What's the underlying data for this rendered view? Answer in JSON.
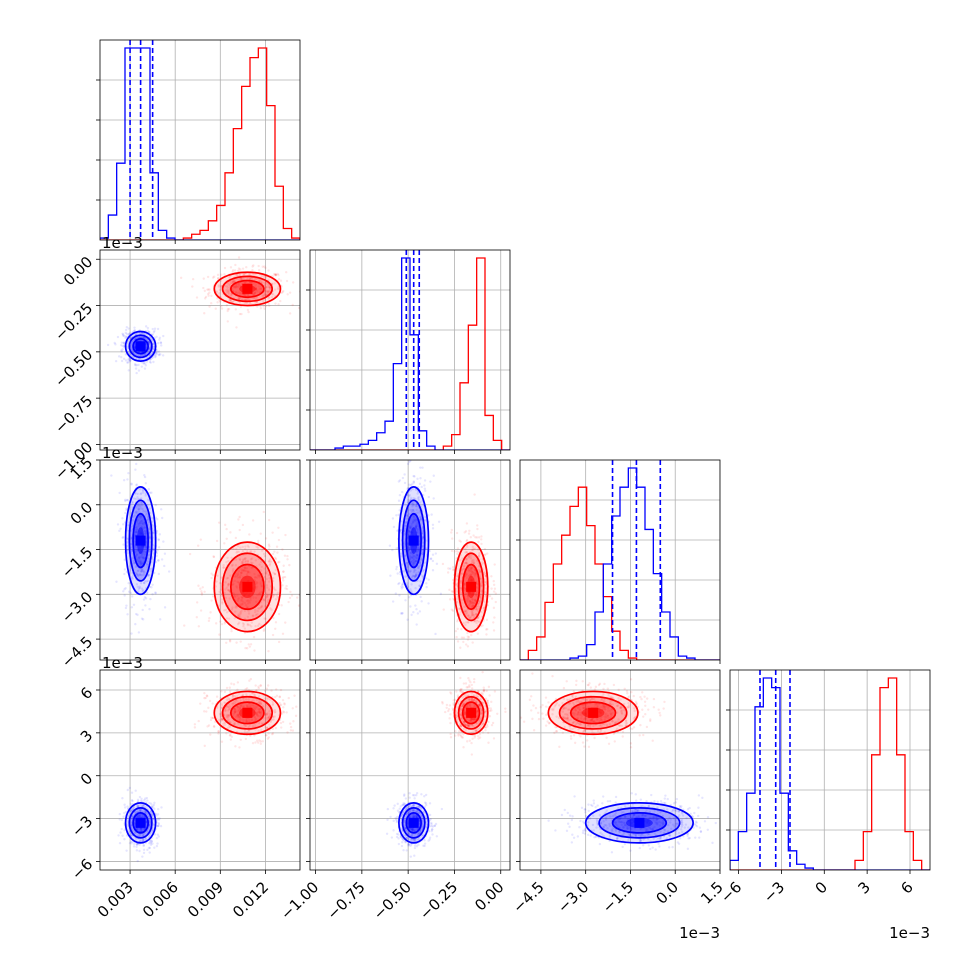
{
  "colors": {
    "red": "#ff0000",
    "blue": "#0000ff",
    "grid": "#b0b0b0",
    "axis": "#000000"
  },
  "chart_data": {
    "type": "corner",
    "grid": true,
    "params": [
      {
        "range": [
          0.001,
          0.0143
        ],
        "ticks": [
          0.003,
          0.006,
          0.009,
          0.012
        ],
        "tick_labels": [
          "0.003",
          "0.006",
          "0.009",
          "0.012"
        ]
      },
      {
        "range": [
          -1.03,
          0.05
        ],
        "ticks": [
          -1.0,
          -0.75,
          -0.5,
          -0.25,
          0.0
        ],
        "tick_labels": [
          "−1.00",
          "−0.75",
          "−0.50",
          "−0.25",
          "0.00"
        ],
        "offset_label": "1e−3"
      },
      {
        "range": [
          -5.2,
          1.5
        ],
        "ticks": [
          -4.5,
          -3.0,
          -1.5,
          0.0,
          1.5
        ],
        "tick_labels": [
          "−4.5",
          "−3.0",
          "−1.5",
          "0.0",
          "1.5"
        ],
        "offset_label": "1e−3"
      },
      {
        "range": [
          -6.6,
          7.4
        ],
        "ticks": [
          -6,
          -3,
          0,
          3,
          6
        ],
        "tick_labels": [
          "−6",
          "−3",
          "0",
          "3",
          "6"
        ],
        "offset_label": "1e−3"
      }
    ],
    "series": [
      {
        "color": "#ff0000",
        "mean": [
          0.0108,
          -0.16,
          -2.75,
          4.4
        ],
        "sd": [
          0.0011,
          0.045,
          0.75,
          0.75
        ],
        "hist": [
          [
            0,
            0,
            0,
            0,
            0,
            0,
            0,
            0,
            0,
            0,
            0.01,
            0.03,
            0.05,
            0.1,
            0.18,
            0.35,
            0.58,
            0.8,
            0.95,
            1.0,
            0.7,
            0.28,
            0.06,
            0.01
          ],
          [
            0,
            0,
            0,
            0,
            0,
            0,
            0,
            0,
            0,
            0,
            0,
            0,
            0,
            0,
            0,
            0,
            0.02,
            0.08,
            0.35,
            0.65,
            1.0,
            0.18,
            0.05,
            0
          ],
          [
            0,
            0.05,
            0.12,
            0.3,
            0.5,
            0.65,
            0.8,
            0.9,
            0.7,
            0.5,
            0.33,
            0.15,
            0.05,
            0.01,
            0,
            0,
            0,
            0,
            0,
            0,
            0,
            0,
            0,
            0
          ],
          [
            0,
            0,
            0,
            0,
            0,
            0,
            0,
            0,
            0,
            0,
            0,
            0,
            0,
            0,
            0,
            0.05,
            0.2,
            0.6,
            0.95,
            1.0,
            0.6,
            0.2,
            0.05,
            0
          ]
        ]
      },
      {
        "color": "#0000ff",
        "mean": [
          0.0037,
          -0.47,
          -1.2,
          -3.3
        ],
        "sd": [
          0.0005,
          0.04,
          0.9,
          0.7
        ],
        "hist": [
          [
            0.01,
            0.13,
            0.4,
            1.0,
            1.0,
            1.0,
            0.35,
            0.05,
            0.01,
            0,
            0,
            0,
            0,
            0,
            0,
            0,
            0,
            0,
            0,
            0,
            0,
            0,
            0,
            0
          ],
          [
            0,
            0,
            0,
            0.01,
            0.02,
            0.02,
            0.03,
            0.05,
            0.09,
            0.15,
            0.45,
            1.0,
            0.6,
            0.1,
            0.02,
            0,
            0,
            0,
            0,
            0,
            0,
            0,
            0,
            0
          ],
          [
            0,
            0,
            0,
            0,
            0,
            0,
            0.01,
            0.02,
            0.08,
            0.25,
            0.5,
            0.75,
            0.9,
            1.0,
            0.9,
            0.68,
            0.45,
            0.25,
            0.12,
            0.02,
            0.01,
            0,
            0,
            0
          ],
          [
            0.05,
            0.2,
            0.4,
            0.85,
            1.0,
            0.95,
            0.4,
            0.1,
            0.03,
            0.01,
            0,
            0,
            0,
            0,
            0,
            0,
            0,
            0,
            0,
            0,
            0,
            0,
            0,
            0
          ]
        ]
      }
    ],
    "quantiles": [
      [
        0.003,
        0.0037,
        0.0045
      ],
      [
        -0.51,
        -0.47,
        -0.44
      ],
      [
        -2.1,
        -1.3,
        -0.5
      ],
      [
        -4.5,
        -3.4,
        -2.4
      ]
    ]
  }
}
